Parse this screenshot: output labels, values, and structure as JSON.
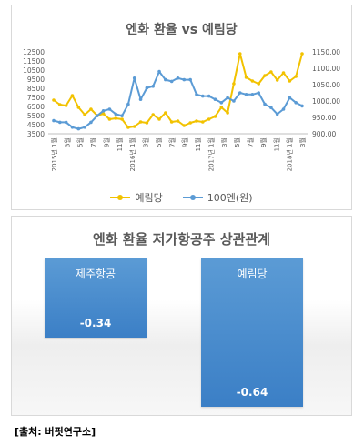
{
  "chart_data": [
    {
      "type": "line",
      "title": "엔화 환율 vs 예림당",
      "x_ticks": [
        "2015년 1월",
        "3월",
        "5월",
        "7월",
        "9월",
        "11월",
        "2016년 1월",
        "3월",
        "5월",
        "7월",
        "9월",
        "11월",
        "2017년 1월",
        "3월",
        "5월",
        "7월",
        "9월",
        "11월",
        "2018년 1월",
        "3월"
      ],
      "y_left": {
        "ticks": [
          "12500",
          "11500",
          "10500",
          "9500",
          "8500",
          "7500",
          "6500",
          "5500",
          "4500",
          "3500"
        ],
        "range": [
          3500,
          12500
        ]
      },
      "y_right": {
        "ticks": [
          "1150.00",
          "1100.00",
          "1050.00",
          "1000.00",
          "950.00",
          "900.00"
        ],
        "range": [
          900,
          1150
        ]
      },
      "series": [
        {
          "name": "예림당",
          "axis": "left",
          "color": "#f2c200",
          "values": [
            7200,
            6700,
            6600,
            7700,
            6400,
            5600,
            6200,
            5500,
            5700,
            5100,
            5200,
            5100,
            4200,
            4300,
            4800,
            4700,
            5600,
            5100,
            5800,
            4800,
            4900,
            4400,
            4700,
            4900,
            4800,
            5100,
            5400,
            6400,
            5800,
            9000,
            12300,
            9700,
            9300,
            9000,
            9900,
            10300,
            9400,
            10200,
            9300,
            9800,
            12300
          ]
        },
        {
          "name": "100엔(원)",
          "axis": "right",
          "color": "#5b9bd5",
          "values": [
            940,
            935,
            935,
            920,
            915,
            920,
            935,
            955,
            970,
            975,
            960,
            955,
            990,
            1070,
            1005,
            1040,
            1045,
            1090,
            1065,
            1060,
            1070,
            1065,
            1065,
            1020,
            1015,
            1015,
            1005,
            995,
            1010,
            1000,
            1025,
            1020,
            1020,
            1025,
            990,
            980,
            960,
            975,
            1010,
            995,
            985
          ]
        }
      ],
      "legend": "bottom"
    },
    {
      "type": "bar",
      "title": "엔화 환율 저가항공주 상관관계",
      "categories": [
        "제주항공",
        "예림당"
      ],
      "values": [
        -0.34,
        -0.64
      ],
      "value_labels": [
        "-0.34",
        "-0.64"
      ],
      "color": "#4a8dd0"
    }
  ],
  "source": "[출처: 버핏연구소]"
}
